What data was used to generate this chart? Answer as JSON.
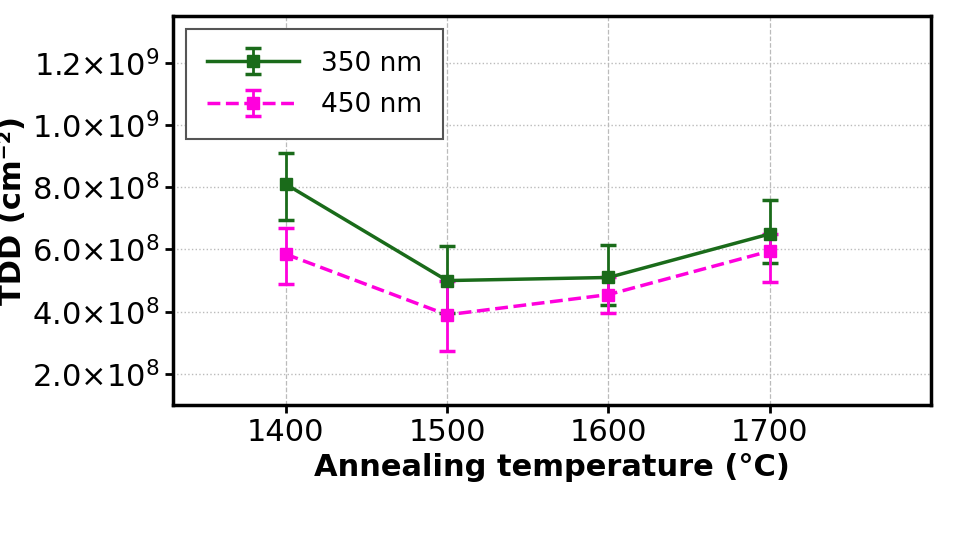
{
  "x": [
    1400,
    1500,
    1600,
    1700
  ],
  "series_350nm": {
    "label": "350 nm",
    "color": "#1a6b1a",
    "y": [
      810000000.0,
      500000000.0,
      510000000.0,
      650000000.0
    ],
    "yerr_low": [
      115000000.0,
      105000000.0,
      90000000.0,
      95000000.0
    ],
    "yerr_high": [
      100000000.0,
      110000000.0,
      105000000.0,
      110000000.0
    ]
  },
  "series_450nm": {
    "label": "450 nm",
    "color": "#ff00dd",
    "y": [
      585000000.0,
      390000000.0,
      455000000.0,
      595000000.0
    ],
    "yerr_low": [
      95000000.0,
      115000000.0,
      60000000.0,
      100000000.0
    ],
    "yerr_high": [
      85000000.0,
      110000000.0,
      55000000.0,
      55000000.0
    ]
  },
  "ylabel": "TDD (cm⁻²)",
  "ylim": [
    100000000.0,
    1350000000.0
  ],
  "xlim": [
    1330,
    1800
  ],
  "xticks": [
    1400,
    1500,
    1600,
    1700
  ],
  "yticks": [
    200000000.0,
    400000000.0,
    600000000.0,
    800000000.0,
    1000000000.0,
    1200000000.0
  ],
  "background_color": "#ffffff",
  "grid_color": "#bbbbbb",
  "marker": "s",
  "marker_size": 9,
  "line_width": 2.5,
  "font_size_tick": 22,
  "font_size_label": 22
}
